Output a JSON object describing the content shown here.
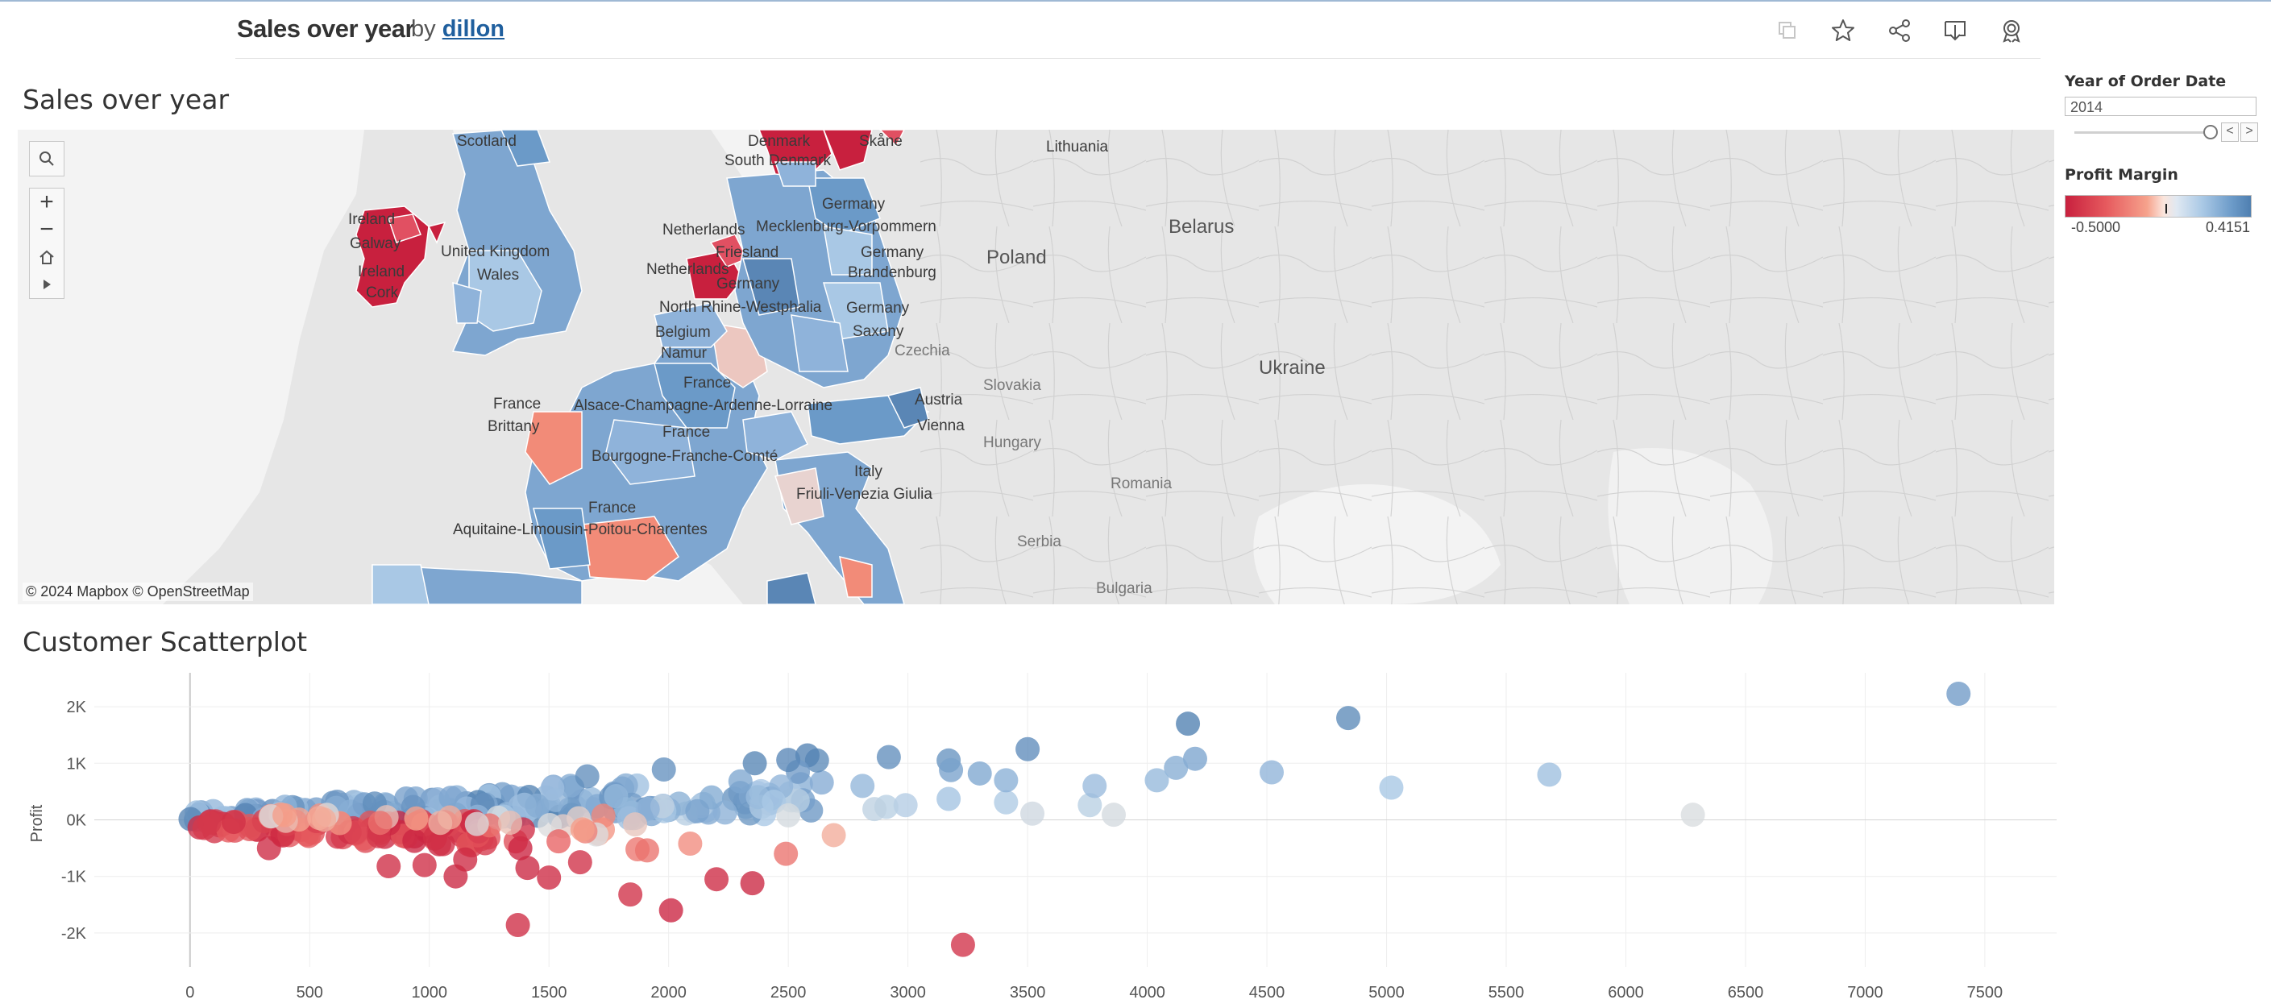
{
  "header": {
    "title": "Sales over year",
    "by": "by",
    "author": "dillon",
    "toolbar_icons": [
      "copy-icon",
      "star-icon",
      "share-icon",
      "download-icon",
      "badge-icon"
    ]
  },
  "map_section": {
    "title": "Sales over year",
    "attribution": "© 2024 Mapbox  © OpenStreetMap",
    "labels": {
      "scotland": "Scotland",
      "denmark": "Denmark",
      "skane": "Skåne",
      "south_denmark": "South Denmark",
      "lithuania": "Lithuania",
      "germany_north": "Germany",
      "ireland": "Ireland",
      "galway": "Galway",
      "ireland2": "Ireland",
      "cork": "Cork",
      "united_kingdom": "United Kingdom",
      "wales": "Wales",
      "netherlands": "Netherlands",
      "friesland": "Friesland",
      "mecklenburg": "Mecklenburg-Vorpommern",
      "germany_east": "Germany",
      "brandenburg": "Brandenburg",
      "netherlands2": "Netherlands",
      "germany_mid": "Germany",
      "nrw": "North Rhine-Westphalia",
      "germany_saxony": "Germany",
      "saxony": "Saxony",
      "belgium": "Belgium",
      "namur": "Namur",
      "czechia": "Czechia",
      "france_ne": "France",
      "alsace": "Alsace-Champagne-Ardenne-Lorraine",
      "slovakia": "Slovakia",
      "austria": "Austria",
      "vienna": "Vienna",
      "france_w": "France",
      "brittany": "Brittany",
      "france_c": "France",
      "bourgogne": "Bourgogne-Franche-Comté",
      "hungary": "Hungary",
      "italy": "Italy",
      "friuli": "Friuli-Venezia Giulia",
      "romania": "Romania",
      "france_sw": "France",
      "aquitaine": "Aquitaine-Limousin-Poitou-Charentes",
      "serbia": "Serbia",
      "bulgaria": "Bulgaria",
      "poland": "Poland",
      "belarus": "Belarus",
      "ukraine": "Ukraine"
    }
  },
  "filter": {
    "label": "Year of Order Date",
    "value": "2014",
    "slider_position": 1.0,
    "prev": "<",
    "next": ">"
  },
  "legend": {
    "label": "Profit Margin",
    "min": "-0.5000",
    "max": "0.4151",
    "colors": {
      "low": "#c8203e",
      "mid": "#e8e8e8",
      "high": "#4f7fb0"
    }
  },
  "scatter_section": {
    "title": "Customer Scatterplot"
  },
  "chart_data": {
    "type": "scatter",
    "title": "Customer Scatterplot",
    "xlabel": "",
    "ylabel": "Profit",
    "xlim": [
      -400,
      7800
    ],
    "ylim": [
      -2600,
      2600
    ],
    "x_ticks": [
      0,
      500,
      1000,
      1500,
      2000,
      2500,
      3000,
      3500,
      4000,
      4500,
      5000,
      5500,
      6000,
      6500,
      7000,
      7500
    ],
    "x_tick_labels": [
      "0",
      "500",
      "1000",
      "1500",
      "2000",
      "2500",
      "3000",
      "3500",
      "4000",
      "4500",
      "5000",
      "5500",
      "6000",
      "6500",
      "7000",
      "7500"
    ],
    "y_ticks": [
      2000,
      1000,
      0,
      -1000,
      -2000
    ],
    "y_tick_labels": [
      "2K",
      "1K",
      "0K",
      "-1K",
      "-2K"
    ],
    "grid": true,
    "color_by": "Profit Margin",
    "points": [
      {
        "x": 7390,
        "y": 2230,
        "m": 0.3
      },
      {
        "x": 4840,
        "y": 1800,
        "m": 0.37
      },
      {
        "x": 4170,
        "y": 1700,
        "m": 0.41
      },
      {
        "x": 4200,
        "y": 1080,
        "m": 0.26
      },
      {
        "x": 4120,
        "y": 920,
        "m": 0.22
      },
      {
        "x": 4040,
        "y": 700,
        "m": 0.17
      },
      {
        "x": 4520,
        "y": 840,
        "m": 0.19
      },
      {
        "x": 5020,
        "y": 570,
        "m": 0.11
      },
      {
        "x": 5680,
        "y": 800,
        "m": 0.14
      },
      {
        "x": 6280,
        "y": 90,
        "m": 0.01
      },
      {
        "x": 3860,
        "y": 90,
        "m": 0.02
      },
      {
        "x": 3760,
        "y": 260,
        "m": 0.07
      },
      {
        "x": 3780,
        "y": 600,
        "m": 0.16
      },
      {
        "x": 3500,
        "y": 1250,
        "m": 0.36
      },
      {
        "x": 3520,
        "y": 110,
        "m": 0.03
      },
      {
        "x": 3410,
        "y": 310,
        "m": 0.09
      },
      {
        "x": 3410,
        "y": 700,
        "m": 0.21
      },
      {
        "x": 3300,
        "y": 820,
        "m": 0.25
      },
      {
        "x": 3170,
        "y": 1050,
        "m": 0.33
      },
      {
        "x": 3180,
        "y": 880,
        "m": 0.27
      },
      {
        "x": 3170,
        "y": 370,
        "m": 0.12
      },
      {
        "x": 2920,
        "y": 1110,
        "m": 0.35
      },
      {
        "x": 2990,
        "y": 260,
        "m": 0.08
      },
      {
        "x": 2910,
        "y": 230,
        "m": 0.07
      },
      {
        "x": 2860,
        "y": 190,
        "m": 0.06
      },
      {
        "x": 2810,
        "y": 600,
        "m": 0.18
      },
      {
        "x": 2690,
        "y": -270,
        "m": -0.1
      },
      {
        "x": 2640,
        "y": 660,
        "m": 0.23
      },
      {
        "x": 2620,
        "y": 1050,
        "m": 0.37
      },
      {
        "x": 2580,
        "y": 1140,
        "m": 0.4
      },
      {
        "x": 2540,
        "y": 850,
        "m": 0.3
      },
      {
        "x": 2500,
        "y": 1060,
        "m": 0.38
      },
      {
        "x": 2470,
        "y": 590,
        "m": 0.19
      },
      {
        "x": 2440,
        "y": 320,
        "m": 0.1
      },
      {
        "x": 2500,
        "y": 80,
        "m": 0.02
      },
      {
        "x": 2490,
        "y": -600,
        "m": -0.24
      },
      {
        "x": 2350,
        "y": -1120,
        "m": -0.48
      },
      {
        "x": 2360,
        "y": 1000,
        "m": 0.39
      },
      {
        "x": 2300,
        "y": 680,
        "m": 0.25
      },
      {
        "x": 2200,
        "y": -1050,
        "m": -0.47
      },
      {
        "x": 2090,
        "y": -420,
        "m": -0.18
      },
      {
        "x": 2010,
        "y": -1600,
        "m": -0.49
      },
      {
        "x": 1870,
        "y": -520,
        "m": -0.23
      },
      {
        "x": 1910,
        "y": -540,
        "m": -0.24
      },
      {
        "x": 1840,
        "y": -1320,
        "m": -0.45
      },
      {
        "x": 1860,
        "y": -80,
        "m": -0.05
      },
      {
        "x": 1980,
        "y": 890,
        "m": 0.34
      },
      {
        "x": 3230,
        "y": -2210,
        "m": -0.44
      },
      {
        "x": 1370,
        "y": -1860,
        "m": -0.46
      },
      {
        "x": 1410,
        "y": -850,
        "m": -0.48
      },
      {
        "x": 1500,
        "y": -1020,
        "m": -0.47
      },
      {
        "x": 1540,
        "y": -380,
        "m": -0.28
      },
      {
        "x": 1630,
        "y": -750,
        "m": -0.45
      },
      {
        "x": 1640,
        "y": -170,
        "m": -0.13
      },
      {
        "x": 1110,
        "y": -1000,
        "m": -0.48
      },
      {
        "x": 1150,
        "y": -700,
        "m": -0.47
      },
      {
        "x": 980,
        "y": -800,
        "m": -0.46
      },
      {
        "x": 830,
        "y": -820,
        "m": -0.46
      },
      {
        "x": 330,
        "y": -500,
        "m": -0.47
      },
      {
        "x": 1660,
        "y": 770,
        "m": 0.35
      },
      {
        "x": 1780,
        "y": 420,
        "m": 0.17
      }
    ],
    "clusters": [
      {
        "x0": 0,
        "x1": 1900,
        "y0": 0,
        "y1": 700,
        "m0": 0.1,
        "m1": 0.42,
        "n": 130,
        "seed": 1
      },
      {
        "x0": 0,
        "x1": 1400,
        "y0": -550,
        "y1": -20,
        "m0": -0.5,
        "m1": -0.3,
        "n": 90,
        "seed": 2
      },
      {
        "x0": 300,
        "x1": 1800,
        "y0": -300,
        "y1": 120,
        "m0": -0.25,
        "m1": 0.02,
        "n": 30,
        "seed": 3
      },
      {
        "x0": 1900,
        "x1": 2600,
        "y0": 100,
        "y1": 700,
        "m0": 0.05,
        "m1": 0.35,
        "n": 40,
        "seed": 4
      }
    ]
  }
}
